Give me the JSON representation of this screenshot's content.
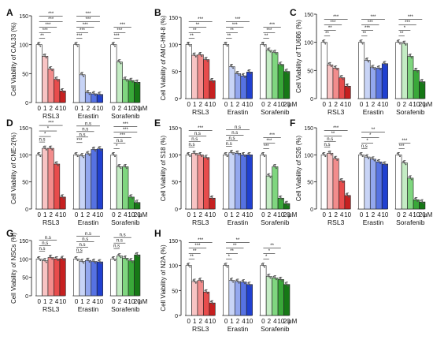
{
  "chart_data": [
    {
      "panel": "A",
      "type": "bar",
      "ylabel": "Cell Viability of CAL33 (%)",
      "ylim": [
        0,
        150
      ],
      "yticks": [
        0,
        50,
        100,
        150
      ],
      "groups": [
        {
          "name": "RSL3",
          "x_ticks": [
            "0",
            "1",
            "2",
            "4",
            "10"
          ],
          "values": [
            100,
            80,
            58,
            40,
            20
          ]
        },
        {
          "name": "Erastin",
          "x_ticks": [
            "0",
            "1",
            "2",
            "4",
            "10"
          ],
          "values": [
            100,
            48,
            17,
            15,
            14
          ]
        },
        {
          "name": "Sorafenib",
          "x_ticks": [
            "0",
            "2",
            "4",
            "10",
            "20"
          ],
          "values": [
            100,
            70,
            40,
            38,
            35
          ]
        }
      ],
      "unit": "μM",
      "sig_labels": [
        "**",
        "***",
        "***",
        "***",
        "***",
        "***",
        "***",
        "***",
        "***",
        "***",
        "***",
        "***",
        "***"
      ]
    },
    {
      "panel": "B",
      "type": "bar",
      "ylabel": "Cell Viability of AMC-HN-8 (%)",
      "ylim": [
        0,
        150
      ],
      "yticks": [
        0,
        50,
        100,
        150
      ],
      "groups": [
        {
          "name": "RSL3",
          "x_ticks": [
            "0",
            "1",
            "2",
            "4",
            "10"
          ],
          "values": [
            100,
            80,
            81,
            72,
            33
          ]
        },
        {
          "name": "Erastin",
          "x_ticks": [
            "0",
            "1",
            "2",
            "4",
            "10"
          ],
          "values": [
            100,
            59,
            46,
            42,
            49
          ]
        },
        {
          "name": "Sorafenib",
          "x_ticks": [
            "0",
            "2",
            "4",
            "10",
            "20"
          ],
          "values": [
            100,
            89,
            85,
            63,
            50
          ]
        }
      ],
      "unit": "μM",
      "sig_labels": [
        "**",
        "**",
        "**",
        "***",
        "**",
        "**",
        "***",
        "***",
        "**",
        "***",
        "***"
      ]
    },
    {
      "panel": "C",
      "type": "bar",
      "ylabel": "Cell Viability of TU686 (%)",
      "ylim": [
        0,
        150
      ],
      "yticks": [
        0,
        50,
        100,
        150
      ],
      "groups": [
        {
          "name": "RSL3",
          "x_ticks": [
            "0",
            "1",
            "2",
            "4",
            "10"
          ],
          "values": [
            100,
            60,
            54,
            37,
            22
          ]
        },
        {
          "name": "Erastin",
          "x_ticks": [
            "0",
            "1",
            "2",
            "4",
            "10"
          ],
          "values": [
            100,
            68,
            55,
            54,
            62
          ]
        },
        {
          "name": "Sorafenib",
          "x_ticks": [
            "0",
            "2",
            "4",
            "10",
            "20"
          ],
          "values": [
            100,
            98,
            75,
            50,
            30
          ]
        }
      ],
      "unit": "μM",
      "sig_labels": [
        "**",
        "**",
        "***",
        "***",
        "**",
        "***",
        "***",
        "***",
        "**",
        "*",
        "***",
        "***"
      ]
    },
    {
      "panel": "D",
      "type": "bar",
      "ylabel": "Cell Viability of CNE-2(%)",
      "ylim": [
        0,
        150
      ],
      "yticks": [
        0,
        50,
        100,
        150
      ],
      "groups": [
        {
          "name": "RSL3",
          "x_ticks": [
            "0",
            "1",
            "2",
            "4",
            "10"
          ],
          "values": [
            100,
            112,
            112,
            83,
            22
          ]
        },
        {
          "name": "Erastin",
          "x_ticks": [
            "0",
            "1",
            "2",
            "4",
            "10"
          ],
          "values": [
            100,
            98,
            102,
            110,
            111
          ]
        },
        {
          "name": "Sorafenib",
          "x_ticks": [
            "0",
            "2",
            "4",
            "10",
            "20"
          ],
          "values": [
            100,
            78,
            78,
            22,
            12
          ]
        }
      ],
      "unit": "μM",
      "sig_labels": [
        "n.s",
        "*",
        "*",
        "***",
        "***",
        "n.s",
        "n.s",
        "n.s",
        "*",
        "n.s",
        "***",
        "***",
        "***"
      ]
    },
    {
      "panel": "E",
      "type": "bar",
      "ylabel": "Cell Viability of S18 (%)",
      "ylim": [
        0,
        150
      ],
      "yticks": [
        0,
        50,
        100,
        150
      ],
      "groups": [
        {
          "name": "RSL3",
          "x_ticks": [
            "0",
            "1",
            "2",
            "4",
            "10"
          ],
          "values": [
            100,
            103,
            100,
            95,
            20
          ]
        },
        {
          "name": "Erastin",
          "x_ticks": [
            "0",
            "1",
            "2",
            "4",
            "10"
          ],
          "values": [
            100,
            104,
            103,
            100,
            100
          ]
        },
        {
          "name": "Sorafenib",
          "x_ticks": [
            "0",
            "2",
            "4",
            "10",
            "20"
          ],
          "values": [
            100,
            61,
            78,
            20,
            10
          ]
        }
      ],
      "unit": "μM",
      "sig_labels": [
        "n.s",
        "n.s",
        "n.s",
        "***",
        "n.s",
        "n.s",
        "n.s",
        "n.s",
        "***",
        "***",
        "***"
      ]
    },
    {
      "panel": "F",
      "type": "bar",
      "ylabel": "Cell Viability of S26 (%)",
      "ylim": [
        0,
        150
      ],
      "yticks": [
        0,
        50,
        100,
        150
      ],
      "groups": [
        {
          "name": "RSL3",
          "x_ticks": [
            "0",
            "1",
            "2",
            "4",
            "10"
          ],
          "values": [
            100,
            103,
            93,
            52,
            25
          ]
        },
        {
          "name": "Erastin",
          "x_ticks": [
            "0",
            "1",
            "2",
            "4",
            "10"
          ],
          "values": [
            100,
            96,
            92,
            87,
            83
          ]
        },
        {
          "name": "Sorafenib",
          "x_ticks": [
            "0",
            "2",
            "4",
            "10",
            "20"
          ],
          "values": [
            100,
            85,
            57,
            17,
            13
          ]
        }
      ],
      "unit": "μM",
      "sig_labels": [
        "n.s",
        "n.s",
        "**",
        "***",
        "n.s",
        "*",
        "*",
        "**",
        "***",
        "***"
      ]
    },
    {
      "panel": "G",
      "type": "bar",
      "ylabel": "Cell Viability of NSCs (%)",
      "ylim": [
        0,
        150
      ],
      "yticks": [
        0,
        50,
        100,
        150
      ],
      "groups": [
        {
          "name": "RSL3",
          "x_ticks": [
            "0",
            "1",
            "2",
            "4",
            "10"
          ],
          "values": [
            100,
            95,
            104,
            100,
            101
          ]
        },
        {
          "name": "Erastin",
          "x_ticks": [
            "0",
            "1",
            "2",
            "4",
            "10"
          ],
          "values": [
            100,
            93,
            96,
            93,
            92
          ]
        },
        {
          "name": "Sorafenib",
          "x_ticks": [
            "0",
            "2",
            "4",
            "10",
            "20"
          ],
          "values": [
            100,
            108,
            102,
            95,
            111
          ]
        }
      ],
      "unit": "μM",
      "sig_labels": [
        "n.s",
        "n.s",
        "n.s",
        "n.s",
        "n.s",
        "n.s",
        "n.s",
        "n.s",
        "n.s",
        "n.s",
        "n.s",
        "n.s"
      ]
    },
    {
      "panel": "H",
      "type": "bar",
      "ylabel": "Cell Viability of N2A (%)",
      "ylim": [
        0,
        150
      ],
      "yticks": [
        0,
        50,
        100,
        150
      ],
      "groups": [
        {
          "name": "RSL3",
          "x_ticks": [
            "0",
            "1",
            "2",
            "4",
            "10"
          ],
          "values": [
            100,
            68,
            70,
            47,
            25
          ]
        },
        {
          "name": "Erastin",
          "x_ticks": [
            "0",
            "1",
            "2",
            "4",
            "10"
          ],
          "values": [
            100,
            70,
            68,
            67,
            62
          ]
        },
        {
          "name": "Sorafenib",
          "x_ticks": [
            "0",
            "2",
            "4",
            "10",
            "20"
          ],
          "values": [
            100,
            78,
            75,
            72,
            62
          ]
        }
      ],
      "unit": "μM",
      "sig_labels": [
        "**",
        "**",
        "***",
        "***",
        "*",
        "**",
        "**",
        "**",
        "*",
        "*",
        "**"
      ]
    }
  ],
  "colors": {
    "RSL3": [
      "#ffffff",
      "#f8c4c4",
      "#f28c8c",
      "#e74c4c",
      "#c62020"
    ],
    "Erastin": [
      "#ffffff",
      "#c8d4f6",
      "#93a7ee",
      "#5672e2",
      "#2040d0"
    ],
    "Sorafenib": [
      "#ffffff",
      "#c4ecc4",
      "#7fd67f",
      "#39a839",
      "#167816"
    ],
    "dots": "#555555"
  }
}
